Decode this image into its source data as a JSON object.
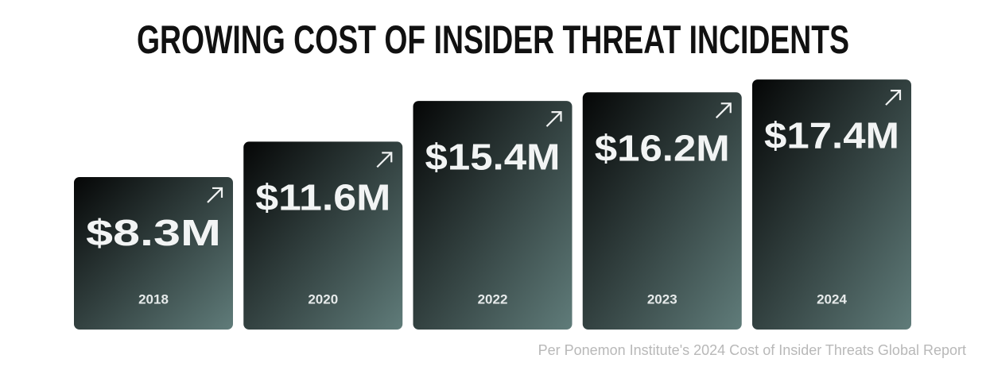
{
  "chart_data": {
    "type": "bar",
    "title": "GROWING COST OF INSIDER THREAT INCIDENTS",
    "categories": [
      "2018",
      "2020",
      "2022",
      "2023",
      "2024"
    ],
    "values": [
      8.3,
      11.6,
      15.4,
      16.2,
      17.4
    ],
    "value_labels": [
      "$8.3M",
      "$11.6M",
      "$15.4M",
      "$16.2M",
      "$17.4M"
    ],
    "color": "#607c7a",
    "source": "Per Ponemon Institute's 2024 Cost of Insider Threats Global Report"
  }
}
